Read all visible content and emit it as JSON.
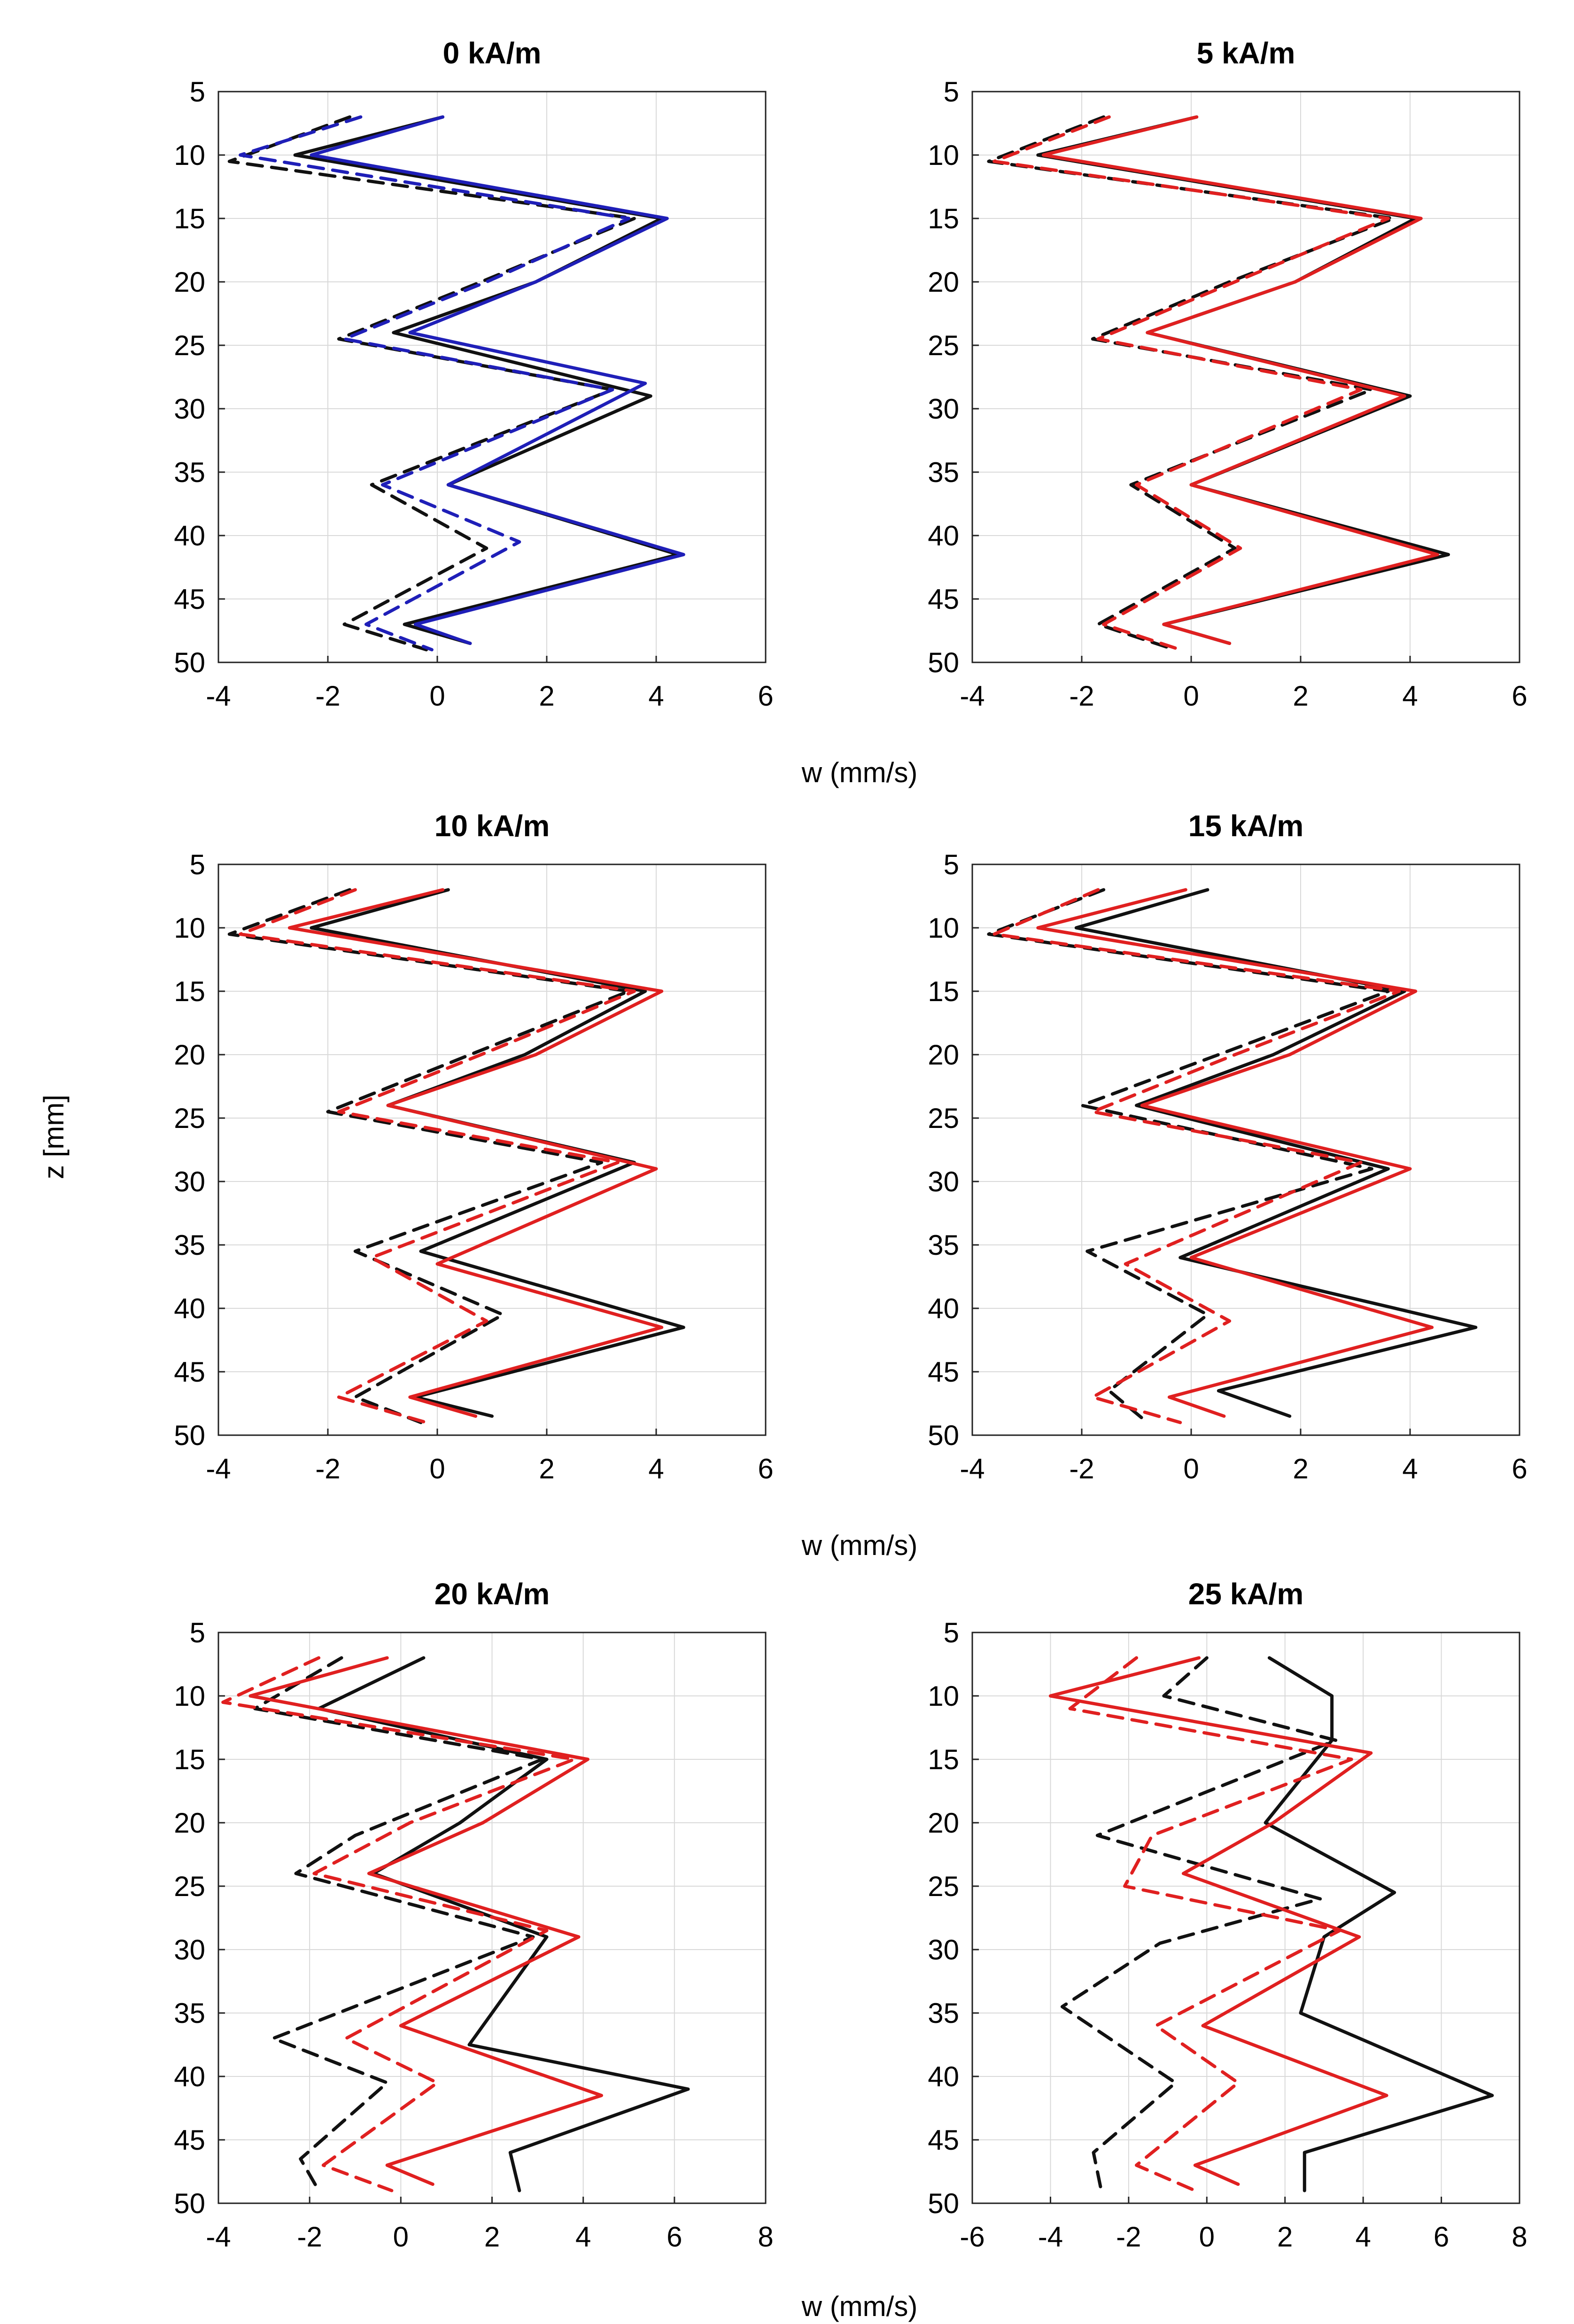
{
  "figure": {
    "ylabel": "z [mm]",
    "xlabels": [
      "w (mm/s)",
      "w (mm/s)",
      "w (mm/s)"
    ]
  },
  "colors": {
    "black": "#111111",
    "blue": "#1f1fb8",
    "red": "#e02020",
    "grid": "#d9d9d9"
  },
  "chart_data": [
    {
      "type": "line",
      "title": "0 kA/m",
      "xlim": [
        -4,
        6
      ],
      "xticks": [
        -4,
        -2,
        0,
        2,
        4,
        6
      ],
      "ylim": [
        5,
        50
      ],
      "yticks": [
        5,
        10,
        15,
        20,
        25,
        30,
        35,
        40,
        45,
        50
      ],
      "y_inverted": true,
      "series": [
        {
          "name": "black solid",
          "color": "black",
          "dash": false,
          "x": [
            0.1,
            -2.6,
            4.1,
            1.8,
            -0.8,
            3.9,
            0.2,
            4.4,
            -0.6,
            0.6
          ],
          "z": [
            7,
            10,
            15,
            20,
            24,
            29,
            36,
            41.5,
            47,
            48.5
          ]
        },
        {
          "name": "black dashed",
          "color": "black",
          "dash": true,
          "x": [
            -1.6,
            -3.8,
            3.6,
            0.8,
            -1.8,
            3.2,
            -1.2,
            0.9,
            -1.7,
            -0.2
          ],
          "z": [
            7,
            10.5,
            15,
            20,
            24.5,
            28.5,
            36,
            41,
            47,
            49
          ]
        },
        {
          "name": "blue solid",
          "color": "blue",
          "dash": false,
          "x": [
            0.1,
            -2.3,
            4.2,
            1.8,
            -0.5,
            3.8,
            0.2,
            4.5,
            -0.4,
            0.6
          ],
          "z": [
            7,
            10,
            15,
            20,
            24,
            28,
            36,
            41.5,
            47,
            48.5
          ]
        },
        {
          "name": "blue dashed",
          "color": "blue",
          "dash": true,
          "x": [
            -1.4,
            -3.6,
            3.5,
            0.9,
            -1.7,
            3.2,
            -1.0,
            1.5,
            -1.3,
            -0.1
          ],
          "z": [
            7,
            10,
            15,
            20,
            24.5,
            28.5,
            36,
            40.5,
            47,
            49
          ]
        }
      ]
    },
    {
      "type": "line",
      "title": "5 kA/m",
      "xlim": [
        -4,
        6
      ],
      "xticks": [
        -4,
        -2,
        0,
        2,
        4,
        6
      ],
      "ylim": [
        5,
        50
      ],
      "yticks": [
        5,
        10,
        15,
        20,
        25,
        30,
        35,
        40,
        45,
        50
      ],
      "y_inverted": true,
      "series": [
        {
          "name": "black solid",
          "color": "black",
          "dash": false,
          "x": [
            0.1,
            -2.8,
            4.1,
            1.9,
            -0.8,
            4.0,
            0.0,
            4.7,
            -0.5,
            0.7
          ],
          "z": [
            7,
            10,
            15,
            20,
            24,
            29,
            36,
            41.5,
            47,
            48.5
          ]
        },
        {
          "name": "black dashed",
          "color": "black",
          "dash": true,
          "x": [
            -1.6,
            -3.7,
            3.7,
            0.7,
            -1.8,
            3.3,
            -1.1,
            0.8,
            -1.7,
            -0.3
          ],
          "z": [
            7,
            10.5,
            15,
            20,
            24.5,
            28.5,
            36,
            41,
            47,
            49
          ]
        },
        {
          "name": "red solid",
          "color": "red",
          "dash": false,
          "x": [
            0.1,
            -2.7,
            4.2,
            1.9,
            -0.8,
            3.9,
            0.0,
            4.5,
            -0.5,
            0.7
          ],
          "z": [
            7,
            10,
            15,
            20,
            24,
            29,
            36,
            41.5,
            47,
            48.5
          ]
        },
        {
          "name": "red dashed",
          "color": "red",
          "dash": true,
          "x": [
            -1.5,
            -3.6,
            3.6,
            0.8,
            -1.7,
            3.1,
            -1.0,
            0.9,
            -1.6,
            -0.2
          ],
          "z": [
            7,
            10.5,
            15,
            20,
            24.5,
            28.5,
            36,
            41,
            47,
            49
          ]
        }
      ]
    },
    {
      "type": "line",
      "title": "10 kA/m",
      "xlim": [
        -4,
        6
      ],
      "xticks": [
        -4,
        -2,
        0,
        2,
        4,
        6
      ],
      "ylim": [
        5,
        50
      ],
      "yticks": [
        5,
        10,
        15,
        20,
        25,
        30,
        35,
        40,
        45,
        50
      ],
      "y_inverted": true,
      "series": [
        {
          "name": "black solid",
          "color": "black",
          "dash": false,
          "x": [
            0.2,
            -2.3,
            3.8,
            1.6,
            -0.9,
            3.6,
            -0.3,
            4.5,
            -0.4,
            1.0
          ],
          "z": [
            7,
            10,
            15,
            20,
            24,
            28.5,
            35.5,
            41.5,
            47,
            48.5
          ]
        },
        {
          "name": "black dashed",
          "color": "black",
          "dash": true,
          "x": [
            -1.6,
            -3.8,
            3.5,
            0.6,
            -2.0,
            3.0,
            -1.5,
            1.2,
            -1.5,
            -0.3
          ],
          "z": [
            7,
            10.5,
            15,
            20,
            24.5,
            28.5,
            35.5,
            40.5,
            47,
            49
          ]
        },
        {
          "name": "red solid",
          "color": "red",
          "dash": false,
          "x": [
            0.1,
            -2.7,
            4.1,
            1.8,
            -0.9,
            4.0,
            0.0,
            4.1,
            -0.5,
            0.7
          ],
          "z": [
            7,
            10,
            15,
            20,
            24,
            29,
            36.5,
            41.5,
            47,
            48.5
          ]
        },
        {
          "name": "red dashed",
          "color": "red",
          "dash": true,
          "x": [
            -1.5,
            -3.6,
            3.6,
            0.8,
            -1.8,
            3.3,
            -1.2,
            0.9,
            -1.8,
            -0.2
          ],
          "z": [
            7,
            10.5,
            15,
            20,
            24.5,
            28.5,
            36,
            41,
            47,
            49
          ]
        }
      ]
    },
    {
      "type": "line",
      "title": "15 kA/m",
      "xlim": [
        -4,
        6
      ],
      "xticks": [
        -4,
        -2,
        0,
        2,
        4,
        6
      ],
      "ylim": [
        5,
        50
      ],
      "yticks": [
        5,
        10,
        15,
        20,
        25,
        30,
        35,
        40,
        45,
        50
      ],
      "y_inverted": true,
      "series": [
        {
          "name": "black solid",
          "color": "black",
          "dash": false,
          "x": [
            0.3,
            -2.1,
            3.9,
            1.5,
            -1.0,
            3.6,
            -0.2,
            5.2,
            0.5,
            1.8
          ],
          "z": [
            7,
            10,
            15,
            20,
            24,
            29,
            36,
            41.5,
            46.5,
            48.5
          ]
        },
        {
          "name": "black dashed",
          "color": "black",
          "dash": true,
          "x": [
            -1.6,
            -3.7,
            3.6,
            0.5,
            -2.0,
            3.3,
            -1.9,
            0.3,
            -1.5,
            -0.8
          ],
          "z": [
            7,
            10.5,
            15,
            20,
            24,
            29,
            35.5,
            40.5,
            46.5,
            49
          ]
        },
        {
          "name": "red solid",
          "color": "red",
          "dash": false,
          "x": [
            -0.1,
            -2.8,
            4.1,
            1.8,
            -0.9,
            4.0,
            0.0,
            4.4,
            -0.4,
            0.6
          ],
          "z": [
            7,
            10,
            15,
            20,
            24,
            29,
            36,
            41.5,
            47,
            48.5
          ]
        },
        {
          "name": "red dashed",
          "color": "red",
          "dash": true,
          "x": [
            -1.7,
            -3.6,
            3.8,
            0.8,
            -1.8,
            3.1,
            -1.2,
            0.7,
            -1.8,
            -0.2
          ],
          "z": [
            7,
            10.5,
            15,
            20,
            24.5,
            28.5,
            36.5,
            41,
            47,
            49
          ]
        }
      ]
    },
    {
      "type": "line",
      "title": "20 kA/m",
      "xlim": [
        -4,
        8
      ],
      "xticks": [
        -4,
        -2,
        0,
        2,
        4,
        6,
        8
      ],
      "ylim": [
        5,
        50
      ],
      "yticks": [
        5,
        10,
        15,
        20,
        25,
        30,
        35,
        40,
        45,
        50
      ],
      "y_inverted": true,
      "series": [
        {
          "name": "black solid",
          "color": "black",
          "dash": false,
          "x": [
            0.5,
            -1.8,
            3.2,
            1.3,
            -0.6,
            3.2,
            1.5,
            6.3,
            2.4,
            2.6
          ],
          "z": [
            7,
            11,
            15,
            20,
            24,
            29,
            37.5,
            41,
            46,
            49
          ]
        },
        {
          "name": "black dashed",
          "color": "black",
          "dash": true,
          "x": [
            -1.3,
            -3.2,
            3.1,
            -1.0,
            -2.3,
            2.9,
            -2.8,
            -0.3,
            -2.2,
            -1.8
          ],
          "z": [
            7,
            11,
            15,
            21,
            24,
            29,
            37,
            40.5,
            46.5,
            49
          ]
        },
        {
          "name": "red solid",
          "color": "red",
          "dash": false,
          "x": [
            -0.3,
            -3.3,
            4.1,
            1.8,
            -0.7,
            3.9,
            0.0,
            4.4,
            -0.3,
            0.7
          ],
          "z": [
            7,
            10,
            15,
            20,
            24,
            29,
            36,
            41.5,
            47,
            48.5
          ]
        },
        {
          "name": "red dashed",
          "color": "red",
          "dash": true,
          "x": [
            -1.8,
            -3.9,
            3.8,
            0.2,
            -1.9,
            3.2,
            -1.2,
            0.8,
            -1.7,
            -0.2
          ],
          "z": [
            7,
            10.5,
            15,
            20,
            24,
            28.5,
            37,
            40.5,
            47,
            49
          ]
        }
      ]
    },
    {
      "type": "line",
      "title": "25 kA/m",
      "xlim": [
        -6,
        8
      ],
      "xticks": [
        -6,
        -4,
        -2,
        0,
        2,
        4,
        6,
        8
      ],
      "ylim": [
        5,
        50
      ],
      "yticks": [
        5,
        10,
        15,
        20,
        25,
        30,
        35,
        40,
        45,
        50
      ],
      "y_inverted": true,
      "series": [
        {
          "name": "black solid",
          "color": "black",
          "dash": false,
          "x": [
            1.6,
            3.2,
            3.2,
            1.5,
            4.8,
            3.0,
            2.4,
            7.3,
            2.5,
            2.5
          ],
          "z": [
            7,
            10,
            13.5,
            20,
            25.5,
            29,
            35,
            41.5,
            46,
            49
          ]
        },
        {
          "name": "black dashed",
          "color": "black",
          "dash": true,
          "x": [
            0.0,
            -1.1,
            3.3,
            -2.8,
            2.9,
            -1.2,
            -3.7,
            -0.8,
            -2.9,
            -2.7
          ],
          "z": [
            7,
            10,
            13.5,
            21,
            26,
            29.5,
            34.5,
            40.5,
            46,
            49
          ]
        },
        {
          "name": "red solid",
          "color": "red",
          "dash": false,
          "x": [
            -0.2,
            -4.0,
            4.2,
            1.7,
            -0.6,
            3.9,
            -0.1,
            4.6,
            -0.3,
            0.8
          ],
          "z": [
            7,
            10,
            14.5,
            20,
            24,
            29,
            36,
            41.5,
            47,
            48.5
          ]
        },
        {
          "name": "red dashed",
          "color": "red",
          "dash": true,
          "x": [
            -1.8,
            -3.5,
            3.7,
            -1.4,
            -2.1,
            3.4,
            -1.3,
            0.8,
            -1.8,
            -0.3
          ],
          "z": [
            7,
            11,
            15,
            21,
            25,
            28.5,
            36,
            40.5,
            47,
            49
          ]
        }
      ]
    }
  ]
}
